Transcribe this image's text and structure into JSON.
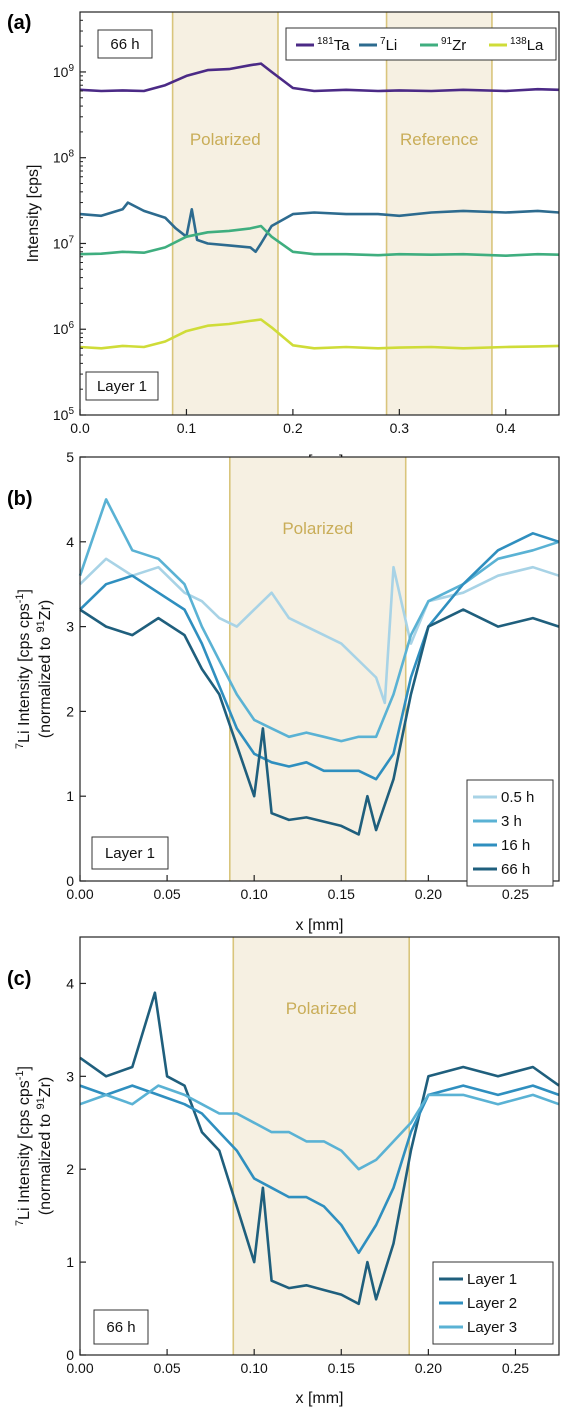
{
  "colors": {
    "ta": "#4b2a86",
    "li": "#2d6b8f",
    "zr": "#3fae7f",
    "la": "#cfdc38",
    "region_fill": "#f6f0e2",
    "region_edge": "#d9c57c",
    "region_text": "#c9ad58",
    "h05": "#a8d3e6",
    "h3": "#5ab2d4",
    "h16": "#2f8fbf",
    "h66": "#1f5f7d",
    "layer1": "#1f5f7d",
    "layer2": "#2f8fbf",
    "layer3": "#5ab2d4"
  },
  "chart_data": [
    {
      "id": "a",
      "type": "line",
      "panel_label": "(a)",
      "xlabel": "x [mm]",
      "ylabel": "Intensity [cps]",
      "y_scale": "log",
      "xlim": [
        0,
        0.45
      ],
      "ylim": [
        100000,
        5000000000
      ],
      "x_ticks": [
        {
          "value": 0.0,
          "label": "0.0"
        },
        {
          "value": 0.1,
          "label": "0.1"
        },
        {
          "value": 0.2,
          "label": "0.2"
        },
        {
          "value": 0.3,
          "label": "0.3"
        },
        {
          "value": 0.4,
          "label": "0.4"
        }
      ],
      "y_ticks": [
        {
          "exp": 5,
          "base": "10",
          "sup": "5"
        },
        {
          "exp": 6,
          "base": "10",
          "sup": "6"
        },
        {
          "exp": 7,
          "base": "10",
          "sup": "7"
        },
        {
          "exp": 8,
          "base": "10",
          "sup": "8"
        },
        {
          "exp": 9,
          "base": "10",
          "sup": "9"
        }
      ],
      "time_label": "66 h",
      "layer_label": "Layer 1",
      "legend_placement": "top-right",
      "legend": [
        {
          "sup": "181",
          "base": "Ta",
          "key": "ta"
        },
        {
          "sup": "7",
          "base": "Li",
          "key": "li"
        },
        {
          "sup": "91",
          "base": "Zr",
          "key": "zr"
        },
        {
          "sup": "138",
          "base": "La",
          "key": "la"
        }
      ],
      "regions": [
        {
          "label": "Polarized",
          "x": [
            0.087,
            0.186
          ]
        },
        {
          "label": "Reference",
          "x": [
            0.288,
            0.387
          ]
        }
      ],
      "series": [
        {
          "name": "181Ta",
          "color_key": "ta",
          "x": [
            0.0,
            0.02,
            0.04,
            0.06,
            0.08,
            0.1,
            0.12,
            0.14,
            0.16,
            0.17,
            0.18,
            0.2,
            0.22,
            0.25,
            0.28,
            0.3,
            0.33,
            0.36,
            0.4,
            0.43,
            0.45
          ],
          "y": [
            620000000,
            600000000,
            610000000,
            600000000,
            700000000,
            900000000,
            1050000000,
            1080000000,
            1200000000,
            1250000000,
            1000000000,
            650000000,
            600000000,
            620000000,
            600000000,
            610000000,
            600000000,
            620000000,
            600000000,
            630000000,
            620000000
          ]
        },
        {
          "name": "7Li",
          "color_key": "li",
          "x": [
            0.0,
            0.02,
            0.04,
            0.045,
            0.06,
            0.08,
            0.09,
            0.1,
            0.105,
            0.11,
            0.12,
            0.14,
            0.16,
            0.165,
            0.17,
            0.18,
            0.2,
            0.22,
            0.25,
            0.28,
            0.3,
            0.33,
            0.36,
            0.4,
            0.43,
            0.45
          ],
          "y": [
            22000000,
            21000000,
            25000000,
            30000000,
            24000000,
            20000000,
            15000000,
            12000000,
            25000000,
            11000000,
            10000000,
            9500000,
            9000000,
            8000000,
            10000000,
            16000000,
            22000000,
            23000000,
            22000000,
            22000000,
            21000000,
            23000000,
            24000000,
            23000000,
            24000000,
            23000000
          ]
        },
        {
          "name": "91Zr",
          "color_key": "zr",
          "x": [
            0.0,
            0.02,
            0.04,
            0.06,
            0.08,
            0.1,
            0.12,
            0.14,
            0.16,
            0.17,
            0.18,
            0.2,
            0.22,
            0.25,
            0.28,
            0.3,
            0.33,
            0.36,
            0.4,
            0.43,
            0.45
          ],
          "y": [
            7500000,
            7600000,
            8000000,
            7800000,
            9000000,
            12000000,
            13500000,
            14000000,
            15000000,
            16000000,
            12000000,
            8000000,
            7500000,
            7500000,
            7300000,
            7500000,
            7400000,
            7500000,
            7200000,
            7500000,
            7400000
          ]
        },
        {
          "name": "138La",
          "color_key": "la",
          "x": [
            0.0,
            0.02,
            0.04,
            0.06,
            0.08,
            0.1,
            0.12,
            0.14,
            0.16,
            0.17,
            0.18,
            0.2,
            0.22,
            0.25,
            0.28,
            0.3,
            0.33,
            0.36,
            0.4,
            0.43,
            0.45
          ],
          "y": [
            620000,
            600000,
            640000,
            620000,
            720000,
            950000,
            1100000,
            1150000,
            1250000,
            1300000,
            1050000,
            650000,
            600000,
            620000,
            600000,
            610000,
            620000,
            600000,
            620000,
            630000,
            640000
          ]
        }
      ]
    },
    {
      "id": "b",
      "type": "line",
      "panel_label": "(b)",
      "xlabel": "x [mm]",
      "ylabel_line1": {
        "sup": "7",
        "base": "Li Intensity [cps cps",
        "sup2": "-1",
        "end": "]"
      },
      "ylabel_line2": {
        "start": "(normalized to ",
        "sup": "91",
        "base": "Zr)"
      },
      "xlim": [
        0,
        0.275
      ],
      "ylim": [
        0,
        5
      ],
      "x_ticks": [
        {
          "value": 0.0,
          "label": "0.00"
        },
        {
          "value": 0.05,
          "label": "0.05"
        },
        {
          "value": 0.1,
          "label": "0.10"
        },
        {
          "value": 0.15,
          "label": "0.15"
        },
        {
          "value": 0.2,
          "label": "0.20"
        },
        {
          "value": 0.25,
          "label": "0.25"
        }
      ],
      "y_ticks": [
        {
          "value": 0,
          "label": "0"
        },
        {
          "value": 1,
          "label": "1"
        },
        {
          "value": 2,
          "label": "2"
        },
        {
          "value": 3,
          "label": "3"
        },
        {
          "value": 4,
          "label": "4"
        },
        {
          "value": 5,
          "label": "5"
        }
      ],
      "box_label": "Layer 1",
      "legend_placement": "bottom-right",
      "regions": [
        {
          "label": "Polarized",
          "x": [
            0.086,
            0.187
          ]
        }
      ],
      "series": [
        {
          "name": "0.5 h",
          "color_key": "h05",
          "x": [
            0.0,
            0.015,
            0.03,
            0.045,
            0.06,
            0.07,
            0.08,
            0.09,
            0.1,
            0.11,
            0.12,
            0.13,
            0.14,
            0.15,
            0.16,
            0.17,
            0.175,
            0.18,
            0.19,
            0.2,
            0.22,
            0.24,
            0.26,
            0.275
          ],
          "y": [
            3.5,
            3.8,
            3.6,
            3.7,
            3.4,
            3.3,
            3.1,
            3.0,
            3.2,
            3.4,
            3.1,
            3.0,
            2.9,
            2.8,
            2.6,
            2.4,
            2.1,
            3.7,
            2.8,
            3.3,
            3.4,
            3.6,
            3.7,
            3.6
          ]
        },
        {
          "name": "3 h",
          "color_key": "h3",
          "x": [
            0.0,
            0.015,
            0.03,
            0.045,
            0.06,
            0.07,
            0.08,
            0.09,
            0.1,
            0.11,
            0.12,
            0.13,
            0.14,
            0.15,
            0.16,
            0.17,
            0.18,
            0.19,
            0.2,
            0.22,
            0.24,
            0.26,
            0.275
          ],
          "y": [
            3.6,
            4.5,
            3.9,
            3.8,
            3.5,
            3.0,
            2.6,
            2.2,
            1.9,
            1.8,
            1.7,
            1.75,
            1.7,
            1.65,
            1.7,
            1.7,
            2.2,
            2.9,
            3.3,
            3.5,
            3.8,
            3.9,
            4.0
          ]
        },
        {
          "name": "16 h",
          "color_key": "h16",
          "x": [
            0.0,
            0.015,
            0.03,
            0.045,
            0.06,
            0.07,
            0.08,
            0.09,
            0.1,
            0.11,
            0.12,
            0.13,
            0.14,
            0.15,
            0.16,
            0.17,
            0.18,
            0.19,
            0.2,
            0.22,
            0.24,
            0.26,
            0.275
          ],
          "y": [
            3.2,
            3.5,
            3.6,
            3.4,
            3.2,
            2.8,
            2.3,
            1.8,
            1.5,
            1.4,
            1.35,
            1.4,
            1.3,
            1.3,
            1.3,
            1.2,
            1.5,
            2.4,
            3.0,
            3.5,
            3.9,
            4.1,
            4.0
          ]
        },
        {
          "name": "66 h",
          "color_key": "h66",
          "x": [
            0.0,
            0.015,
            0.03,
            0.045,
            0.06,
            0.07,
            0.08,
            0.09,
            0.1,
            0.105,
            0.11,
            0.12,
            0.13,
            0.14,
            0.15,
            0.16,
            0.165,
            0.17,
            0.18,
            0.19,
            0.2,
            0.22,
            0.24,
            0.26,
            0.275
          ],
          "y": [
            3.2,
            3.0,
            2.9,
            3.1,
            2.9,
            2.5,
            2.2,
            1.6,
            1.0,
            1.8,
            0.8,
            0.72,
            0.75,
            0.7,
            0.65,
            0.55,
            1.0,
            0.6,
            1.2,
            2.2,
            3.0,
            3.2,
            3.0,
            3.1,
            3.0
          ]
        }
      ]
    },
    {
      "id": "c",
      "type": "line",
      "panel_label": "(c)",
      "xlabel": "x [mm]",
      "ylabel_line1": {
        "sup": "7",
        "base": "Li Intensity [cps cps",
        "sup2": "-1",
        "end": "]"
      },
      "ylabel_line2": {
        "start": "(normalized to ",
        "sup": "91",
        "base": "Zr)"
      },
      "xlim": [
        0,
        0.275
      ],
      "ylim": [
        0,
        4.5
      ],
      "x_ticks": [
        {
          "value": 0.0,
          "label": "0.00"
        },
        {
          "value": 0.05,
          "label": "0.05"
        },
        {
          "value": 0.1,
          "label": "0.10"
        },
        {
          "value": 0.15,
          "label": "0.15"
        },
        {
          "value": 0.2,
          "label": "0.20"
        },
        {
          "value": 0.25,
          "label": "0.25"
        }
      ],
      "y_ticks": [
        {
          "value": 0,
          "label": "0"
        },
        {
          "value": 1,
          "label": "1"
        },
        {
          "value": 2,
          "label": "2"
        },
        {
          "value": 3,
          "label": "3"
        },
        {
          "value": 4,
          "label": "4"
        }
      ],
      "box_label": "66 h",
      "legend_placement": "bottom-right",
      "regions": [
        {
          "label": "Polarized",
          "x": [
            0.088,
            0.189
          ]
        }
      ],
      "series": [
        {
          "name": "Layer 1",
          "color_key": "layer1",
          "x": [
            0.0,
            0.015,
            0.03,
            0.043,
            0.05,
            0.06,
            0.07,
            0.08,
            0.09,
            0.1,
            0.105,
            0.11,
            0.12,
            0.13,
            0.14,
            0.15,
            0.16,
            0.165,
            0.17,
            0.18,
            0.19,
            0.2,
            0.22,
            0.24,
            0.26,
            0.275
          ],
          "y": [
            3.2,
            3.0,
            3.1,
            3.9,
            3.0,
            2.9,
            2.4,
            2.2,
            1.6,
            1.0,
            1.8,
            0.8,
            0.72,
            0.75,
            0.7,
            0.65,
            0.55,
            1.0,
            0.6,
            1.2,
            2.2,
            3.0,
            3.1,
            3.0,
            3.1,
            2.9
          ]
        },
        {
          "name": "Layer 2",
          "color_key": "layer2",
          "x": [
            0.0,
            0.015,
            0.03,
            0.045,
            0.06,
            0.07,
            0.08,
            0.09,
            0.1,
            0.11,
            0.12,
            0.13,
            0.14,
            0.15,
            0.16,
            0.17,
            0.18,
            0.19,
            0.2,
            0.22,
            0.24,
            0.26,
            0.275
          ],
          "y": [
            2.9,
            2.8,
            2.9,
            2.8,
            2.7,
            2.6,
            2.4,
            2.2,
            1.9,
            1.8,
            1.7,
            1.7,
            1.6,
            1.4,
            1.1,
            1.4,
            1.8,
            2.4,
            2.8,
            2.9,
            2.8,
            2.9,
            2.8
          ]
        },
        {
          "name": "Layer 3",
          "color_key": "layer3",
          "x": [
            0.0,
            0.015,
            0.03,
            0.045,
            0.06,
            0.07,
            0.08,
            0.09,
            0.1,
            0.11,
            0.12,
            0.13,
            0.14,
            0.15,
            0.16,
            0.17,
            0.18,
            0.19,
            0.2,
            0.22,
            0.24,
            0.26,
            0.275
          ],
          "y": [
            2.7,
            2.8,
            2.7,
            2.9,
            2.8,
            2.7,
            2.6,
            2.6,
            2.5,
            2.4,
            2.4,
            2.3,
            2.3,
            2.2,
            2.0,
            2.1,
            2.3,
            2.5,
            2.8,
            2.8,
            2.7,
            2.8,
            2.7
          ]
        }
      ]
    }
  ]
}
